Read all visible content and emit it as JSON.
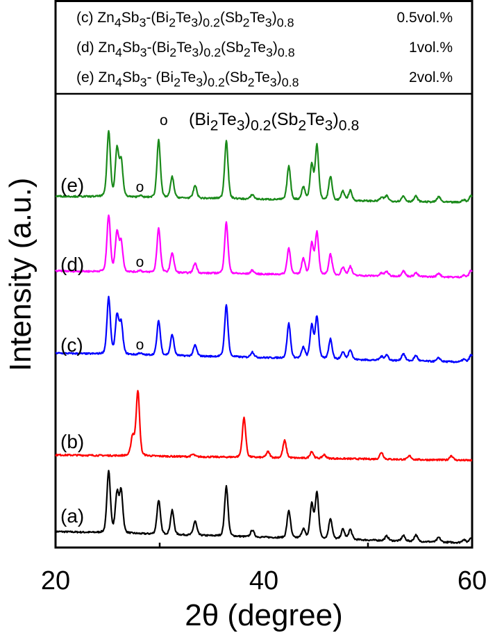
{
  "chart_data": {
    "type": "line",
    "xlabel": "2θ (degree)",
    "ylabel": "Intensity (a.u.)",
    "xlim": [
      20,
      60
    ],
    "ylim": [
      0,
      120
    ],
    "xticks": [
      "20",
      "40",
      "60"
    ],
    "xtick_values": [
      20,
      40,
      60
    ],
    "minor_xticks": [
      30,
      50
    ],
    "grid": false,
    "legend": [
      {
        "label": "(c)",
        "formula": [
          {
            "t": "Zn"
          },
          {
            "s": "4"
          },
          {
            "t": "Sb"
          },
          {
            "s": "3"
          },
          {
            "t": "-(Bi"
          },
          {
            "s": "2"
          },
          {
            "t": "Te"
          },
          {
            "s": "3"
          },
          {
            "t": ")"
          },
          {
            "s": "0.2"
          },
          {
            "t": "(Sb"
          },
          {
            "s": "2"
          },
          {
            "t": "Te"
          },
          {
            "s": "3"
          },
          {
            "t": ")"
          },
          {
            "s": "0.8"
          }
        ],
        "amount": "0.5vol.%"
      },
      {
        "label": "(d)",
        "formula": [
          {
            "t": "Zn"
          },
          {
            "s": "4"
          },
          {
            "t": "Sb"
          },
          {
            "s": "3"
          },
          {
            "t": "-(Bi"
          },
          {
            "s": "2"
          },
          {
            "t": "Te"
          },
          {
            "s": "3"
          },
          {
            "t": ")"
          },
          {
            "s": "0.2"
          },
          {
            "t": "(Sb"
          },
          {
            "s": "2"
          },
          {
            "t": "Te"
          },
          {
            "s": "3"
          },
          {
            "t": ")"
          },
          {
            "s": "0.8"
          }
        ],
        "amount": "1vol.%"
      },
      {
        "label": "(e)",
        "formula": [
          {
            "t": "Zn"
          },
          {
            "s": "4"
          },
          {
            "t": "Sb"
          },
          {
            "s": "3"
          },
          {
            "t": "- (Bi"
          },
          {
            "s": "2"
          },
          {
            "t": "Te"
          },
          {
            "s": "3"
          },
          {
            "t": ")"
          },
          {
            "s": "0.2"
          },
          {
            "t": "(Sb"
          },
          {
            "s": "2"
          },
          {
            "t": "Te"
          },
          {
            "s": "3"
          },
          {
            "t": ")"
          },
          {
            "s": "0.8"
          }
        ],
        "amount": "2vol.%"
      }
    ],
    "marker_legend": {
      "symbol": "o",
      "formula": [
        {
          "t": "(Bi"
        },
        {
          "s": "2"
        },
        {
          "t": "Te"
        },
        {
          "s": "3"
        },
        {
          "t": ")"
        },
        {
          "s": "0.2"
        },
        {
          "t": "(Sb"
        },
        {
          "s": "2"
        },
        {
          "t": "Te"
        },
        {
          "s": "3"
        },
        {
          "t": ")"
        },
        {
          "s": "0.8"
        }
      ]
    },
    "series": [
      {
        "name": "(a)",
        "color": "#000000",
        "baseline": [
          3.5,
          1.0
        ],
        "peaks": [
          [
            25.1,
            13.7
          ],
          [
            25.9,
            8.5
          ],
          [
            26.3,
            9
          ],
          [
            29.9,
            7.5
          ],
          [
            31.2,
            5.3
          ],
          [
            33.4,
            3.1
          ],
          [
            36.4,
            11
          ],
          [
            38.9,
            1.5
          ],
          [
            42.4,
            6
          ],
          [
            43.8,
            2
          ],
          [
            44.6,
            7.5
          ],
          [
            45.1,
            10
          ],
          [
            46.4,
            4.5
          ],
          [
            47.6,
            2.2
          ],
          [
            48.3,
            2.2
          ],
          [
            51.8,
            1
          ],
          [
            53.4,
            1.2
          ],
          [
            54.6,
            1.4
          ],
          [
            56.8,
            1
          ],
          [
            59.2,
            0.7
          ],
          [
            59.9,
            1.2
          ]
        ],
        "markers": []
      },
      {
        "name": "(b)",
        "color": "#ff0000",
        "baseline": [
          20.3,
          19.1
        ],
        "peaks": [
          [
            27.4,
            4.3
          ],
          [
            27.9,
            14.3
          ],
          [
            33.2,
            0.5
          ],
          [
            38.1,
            8.7
          ],
          [
            40.4,
            1.3
          ],
          [
            42.0,
            3.8
          ],
          [
            44.6,
            1.5
          ],
          [
            45.8,
            0.8
          ],
          [
            51.3,
            1.5
          ],
          [
            54.0,
            0.8
          ],
          [
            58.0,
            1
          ]
        ],
        "markers": []
      },
      {
        "name": "(c)",
        "color": "#0000ff",
        "baseline": [
          42.6,
          40.6
        ],
        "peaks": [
          [
            25.1,
            12.4
          ],
          [
            25.9,
            8.4
          ],
          [
            26.3,
            6.8
          ],
          [
            28.1,
            0.4
          ],
          [
            29.9,
            7.6
          ],
          [
            31.2,
            4.6
          ],
          [
            33.4,
            2.4
          ],
          [
            36.4,
            11.3
          ],
          [
            38.9,
            1.2
          ],
          [
            42.4,
            7.6
          ],
          [
            43.8,
            2.4
          ],
          [
            44.6,
            7.2
          ],
          [
            45.1,
            9.2
          ],
          [
            46.4,
            4.4
          ],
          [
            47.6,
            1.6
          ],
          [
            48.3,
            2.2
          ],
          [
            51.3,
            0.8
          ],
          [
            51.8,
            1.2
          ],
          [
            53.4,
            1.6
          ],
          [
            54.6,
            1.2
          ],
          [
            56.8,
            0.8
          ],
          [
            59.2,
            0.6
          ],
          [
            59.9,
            1.6
          ]
        ],
        "markers": [
          28.1
        ]
      },
      {
        "name": "(d)",
        "color": "#ff00ff",
        "baseline": [
          60.6,
          59.2
        ],
        "peaks": [
          [
            25.1,
            12.4
          ],
          [
            25.9,
            8.6
          ],
          [
            26.3,
            6.4
          ],
          [
            28.1,
            0.4
          ],
          [
            29.9,
            9.8
          ],
          [
            31.2,
            4.4
          ],
          [
            33.4,
            2.2
          ],
          [
            36.4,
            11.2
          ],
          [
            38.9,
            0.8
          ],
          [
            42.4,
            5.8
          ],
          [
            43.8,
            3.6
          ],
          [
            44.6,
            6.8
          ],
          [
            45.1,
            9.2
          ],
          [
            46.4,
            4.6
          ],
          [
            47.6,
            1.8
          ],
          [
            48.3,
            2
          ],
          [
            51.3,
            0.6
          ],
          [
            51.8,
            1
          ],
          [
            53.4,
            1.2
          ],
          [
            54.6,
            0.8
          ],
          [
            56.8,
            0.8
          ],
          [
            59.2,
            0.4
          ],
          [
            59.9,
            1.6
          ]
        ],
        "markers": [
          28.1
        ]
      },
      {
        "name": "(e)",
        "color": "#1a8a1a",
        "baseline": [
          77.0,
          75.6
        ],
        "peaks": [
          [
            25.1,
            14.4
          ],
          [
            25.9,
            10.4
          ],
          [
            26.3,
            7.8
          ],
          [
            28.1,
            0.4
          ],
          [
            29.9,
            12.8
          ],
          [
            31.2,
            4.6
          ],
          [
            33.4,
            2.8
          ],
          [
            36.4,
            12.8
          ],
          [
            38.9,
            1
          ],
          [
            42.4,
            7.4
          ],
          [
            43.8,
            2.8
          ],
          [
            44.6,
            7.6
          ],
          [
            45.1,
            12
          ],
          [
            46.4,
            5.2
          ],
          [
            47.6,
            2
          ],
          [
            48.3,
            2.2
          ],
          [
            51.3,
            0.8
          ],
          [
            51.8,
            1.2
          ],
          [
            53.4,
            1.2
          ],
          [
            54.6,
            1.2
          ],
          [
            56.8,
            1.2
          ],
          [
            59.2,
            0.6
          ],
          [
            59.9,
            1.6
          ]
        ],
        "markers": [
          28.1
        ]
      }
    ]
  }
}
